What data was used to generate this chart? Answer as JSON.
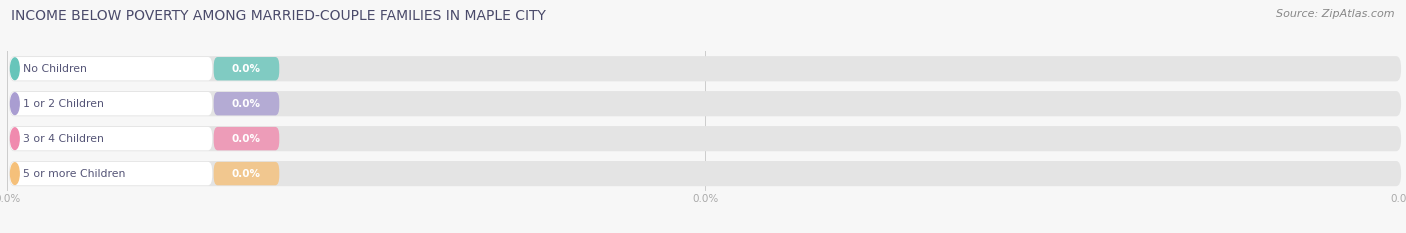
{
  "title": "INCOME BELOW POVERTY AMONG MARRIED-COUPLE FAMILIES IN MAPLE CITY",
  "source": "Source: ZipAtlas.com",
  "categories": [
    "No Children",
    "1 or 2 Children",
    "3 or 4 Children",
    "5 or more Children"
  ],
  "values": [
    0.0,
    0.0,
    0.0,
    0.0
  ],
  "bar_colors": [
    "#67C5BA",
    "#A99DD1",
    "#F08AAE",
    "#F5C07A"
  ],
  "background_color": "#f7f7f7",
  "bar_bg_color": "#e4e4e4",
  "white_label_bg": "#ffffff",
  "figsize": [
    14.06,
    2.33
  ],
  "dpi": 100,
  "title_fontsize": 10,
  "title_color": "#4a4a6a",
  "source_color": "#888888",
  "label_text_color": "#555577",
  "value_text_color": "#ffffff",
  "tick_label_color": "#aaaaaa",
  "grid_color": "#cccccc"
}
